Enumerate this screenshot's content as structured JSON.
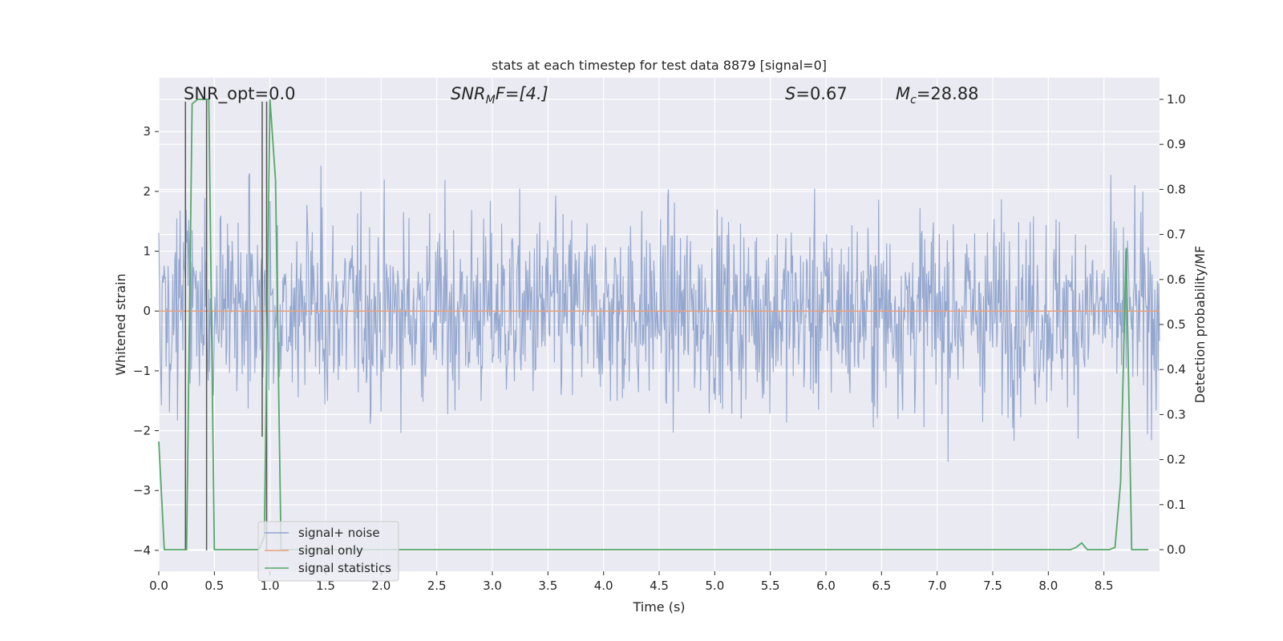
{
  "chart_data": {
    "type": "line",
    "title": "stats at each timestep for test data 8879 [signal=0]",
    "xlabel": "Time (s)",
    "ylabel_left": "Whitened strain",
    "ylabel_right": "Detection probability/MF",
    "xlim": [
      0.0,
      9.0
    ],
    "ylim_left": [
      -4.35,
      3.9
    ],
    "ylim_right": [
      -0.048,
      1.048
    ],
    "xticks": [
      0.0,
      0.5,
      1.0,
      1.5,
      2.0,
      2.5,
      3.0,
      3.5,
      4.0,
      4.5,
      5.0,
      5.5,
      6.0,
      6.5,
      7.0,
      7.5,
      8.0,
      8.5
    ],
    "xtick_labels": [
      "0.0",
      "0.5",
      "1.0",
      "1.5",
      "2.0",
      "2.5",
      "3.0",
      "3.5",
      "4.0",
      "4.5",
      "5.0",
      "5.5",
      "6.0",
      "6.5",
      "7.0",
      "7.5",
      "8.0",
      "8.5"
    ],
    "yticks_left": [
      3,
      2,
      1,
      0,
      -1,
      -2,
      -3,
      -4
    ],
    "ytick_labels_left": [
      "3",
      "2",
      "1",
      "0",
      "−1",
      "−2",
      "−3",
      "−4"
    ],
    "yticks_right": [
      1.0,
      0.9,
      0.8,
      0.7,
      0.6,
      0.5,
      0.4,
      0.3,
      0.2,
      0.1,
      0.0
    ],
    "ytick_labels_right": [
      "1.0",
      "0.9",
      "0.8",
      "0.7",
      "0.6",
      "0.5",
      "0.4",
      "0.3",
      "0.2",
      "0.1",
      "0.0"
    ],
    "grid": true,
    "legend_location": "lower-left",
    "annotations": {
      "snr_opt": "SNR_opt=0.0",
      "snr_mf_main": "SNR",
      "snr_mf_sub": "M",
      "snr_mf_rest": "F=[4.]",
      "s_main": "S",
      "s_rest": "=0.67",
      "mc_main": "M",
      "mc_sub": "c",
      "mc_rest": "=28.88"
    },
    "series": [
      {
        "name": "signal+ noise",
        "color": "#8fa3cc",
        "axis": "left",
        "description_kind": "noise",
        "amplitude_range": [
          -3.1,
          3.5
        ]
      },
      {
        "name": "signal only",
        "color": "#e8a07c",
        "axis": "left",
        "x": [
          0.0,
          9.0
        ],
        "y": [
          0.0,
          0.0
        ]
      },
      {
        "name": "signal statistics",
        "color": "#55a868",
        "axis": "right",
        "x": [
          0.0,
          0.05,
          0.1,
          0.15,
          0.2,
          0.25,
          0.3,
          0.35,
          0.4,
          0.45,
          0.5,
          0.55,
          0.6,
          0.65,
          0.7,
          0.75,
          0.8,
          0.85,
          0.9,
          0.95,
          1.0,
          1.05,
          1.1,
          1.15,
          1.2,
          1.5,
          2.0,
          3.0,
          4.0,
          5.0,
          6.0,
          7.0,
          8.0,
          8.2,
          8.25,
          8.3,
          8.35,
          8.4,
          8.5,
          8.55,
          8.6,
          8.65,
          8.7,
          8.75,
          8.8,
          8.9
        ],
        "y": [
          0.24,
          0.0,
          0.0,
          0.0,
          0.0,
          0.0,
          0.99,
          1.0,
          1.0,
          1.0,
          0.0,
          0.0,
          0.0,
          0.0,
          0.0,
          0.0,
          0.0,
          0.0,
          0.0,
          0.03,
          1.0,
          0.82,
          0.0,
          0.0,
          0.0,
          0.0,
          0.0,
          0.0,
          0.0,
          0.0,
          0.0,
          0.0,
          0.0,
          0.0,
          0.005,
          0.015,
          0.0,
          0.0,
          0.0,
          0.0,
          0.005,
          0.15,
          0.67,
          0.0,
          0.0,
          0.0
        ]
      }
    ],
    "vertical_markers": [
      {
        "x": 0.24,
        "y_top": 3.5,
        "y_bottom": -4.0
      },
      {
        "x": 0.43,
        "y_top": 3.55,
        "y_bottom": -4.0
      },
      {
        "x": 0.93,
        "y_top": 3.5,
        "y_bottom": -2.1
      },
      {
        "x": 0.97,
        "y_top": 3.5,
        "y_bottom": -4.0
      }
    ]
  }
}
